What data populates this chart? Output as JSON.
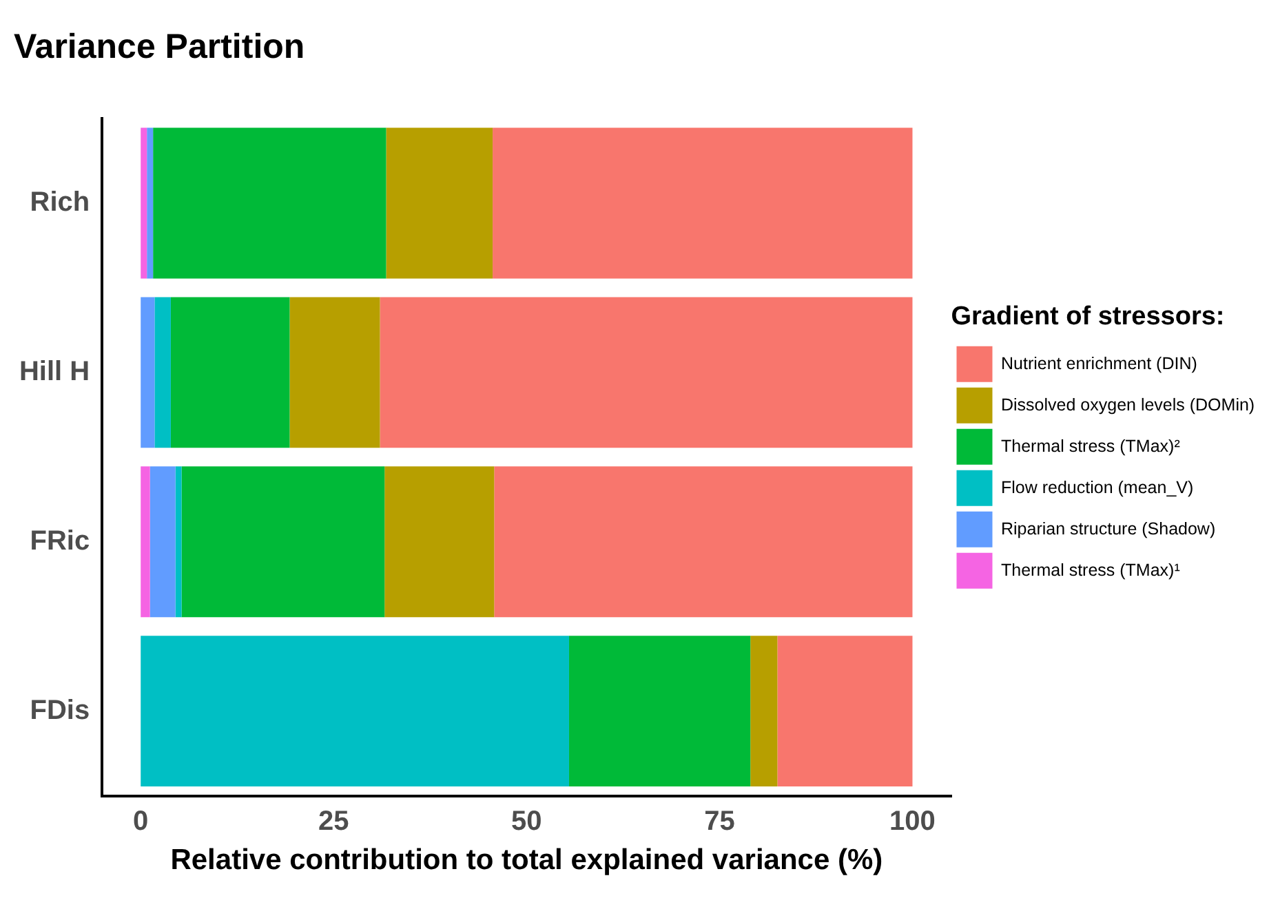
{
  "chart_data": {
    "type": "bar",
    "orientation": "horizontal",
    "stacked": true,
    "title": "Variance Partition",
    "xlabel": "Relative contribution to total explained variance (%)",
    "legend_title": "Gradient of stressors:",
    "legend": "right",
    "grid": false,
    "categories": [
      "Rich",
      "Hill H",
      "FRic",
      "FDis"
    ],
    "xlim": [
      -5,
      105
    ],
    "xticks": [
      0,
      25,
      50,
      75,
      100
    ],
    "series": [
      {
        "name": "Thermal stress (TMax)¹",
        "color": "#f564e3",
        "values": [
          0.8,
          0,
          1.2,
          0
        ]
      },
      {
        "name": "Riparian structure (Shadow)",
        "color": "#619cff",
        "values": [
          0.8,
          1.8,
          3.3,
          0
        ]
      },
      {
        "name": "Flow reduction (mean_V)",
        "color": "#00bfc4",
        "values": [
          0,
          2.1,
          0.8,
          55.5
        ]
      },
      {
        "name": "Thermal stress (TMax)²",
        "color": "#00ba38",
        "values": [
          30.2,
          15.4,
          26.3,
          23.5
        ]
      },
      {
        "name": "Dissolved oxygen levels (DOMin)",
        "color": "#b79f00",
        "values": [
          13.8,
          11.7,
          14.2,
          3.5
        ]
      },
      {
        "name": "Nutrient enrichment (DIN)",
        "color": "#f8766d",
        "values": [
          54.4,
          69.0,
          54.2,
          17.5
        ]
      }
    ]
  }
}
